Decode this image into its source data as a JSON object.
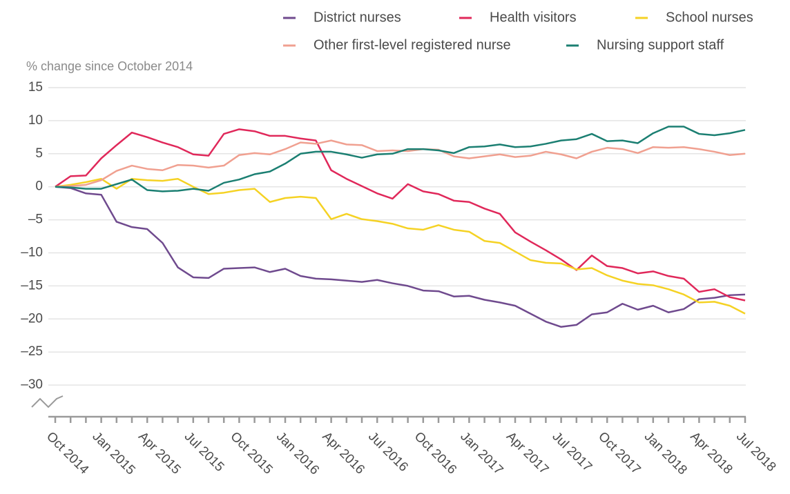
{
  "chart_data": {
    "type": "line",
    "y_axis_label": "% change since October 2014",
    "categories": [
      "Oct 2014",
      null,
      null,
      "Jan 2015",
      null,
      null,
      "Apr 2015",
      null,
      null,
      "Jul 2015",
      null,
      null,
      "Oct 2015",
      null,
      null,
      "Jan 2016",
      null,
      null,
      "Apr 2016",
      null,
      null,
      "Jul 2016",
      null,
      null,
      "Oct 2016",
      null,
      null,
      "Jan 2017",
      null,
      null,
      "Apr 2017",
      null,
      null,
      "Jul 2017",
      null,
      null,
      "Oct 2017",
      null,
      null,
      "Jan 2018",
      null,
      null,
      "Apr 2018",
      null,
      null,
      "Jul 2018"
    ],
    "ylim": [
      -35,
      15
    ],
    "yticks": [
      {
        "value": -30,
        "label": "–30"
      },
      {
        "value": -25,
        "label": "–25"
      },
      {
        "value": -20,
        "label": "–20"
      },
      {
        "value": -15,
        "label": "–15"
      },
      {
        "value": -10,
        "label": "–10"
      },
      {
        "value": -5,
        "label": "–5"
      },
      0,
      5,
      10,
      15
    ],
    "grid": true,
    "legend": "top-right",
    "series": [
      {
        "name": "District nurses",
        "color": "#6f4a8e",
        "values": [
          0,
          -0.2,
          -1,
          -1.2,
          -5.3,
          -6.1,
          -6.4,
          -8.5,
          -12.2,
          -13.7,
          -13.8,
          -12.4,
          -12.3,
          -12.2,
          -12.9,
          -12.4,
          -13.5,
          -13.9,
          -14,
          -14.2,
          -14.4,
          -14.1,
          -14.6,
          -15,
          -15.7,
          -15.8,
          -16.6,
          -16.5,
          -17.1,
          -17.5,
          -18,
          -19.2,
          -20.4,
          -21.2,
          -20.9,
          -19.3,
          -19,
          -17.7,
          -18.6,
          -18,
          -19,
          -18.5,
          -17,
          -16.8,
          -16.4,
          -16.3
        ]
      },
      {
        "name": "Health visitors",
        "color": "#e0285a",
        "values": [
          0,
          1.6,
          1.7,
          4.3,
          6.3,
          8.2,
          7.5,
          6.7,
          6,
          4.9,
          4.7,
          8,
          8.7,
          8.4,
          7.7,
          7.7,
          7.3,
          7,
          2.5,
          1.2,
          0.1,
          -1,
          -1.8,
          0.4,
          -0.7,
          -1.1,
          -2.1,
          -2.3,
          -3.3,
          -4.1,
          -6.9,
          -8.3,
          -9.6,
          -11,
          -12.6,
          -10.4,
          -12,
          -12.3,
          -13.1,
          -12.8,
          -13.5,
          -13.9,
          -15.9,
          -15.5,
          -16.7,
          -17.2
        ]
      },
      {
        "name": "School nurses",
        "color": "#f5d224",
        "values": [
          0,
          0.3,
          0.7,
          1.2,
          -0.3,
          1.2,
          1,
          0.9,
          1.2,
          0,
          -1.1,
          -0.9,
          -0.5,
          -0.3,
          -2.3,
          -1.7,
          -1.5,
          -1.7,
          -4.9,
          -4.1,
          -4.9,
          -5.2,
          -5.6,
          -6.3,
          -6.5,
          -5.8,
          -6.5,
          -6.8,
          -8.2,
          -8.5,
          -9.8,
          -11.1,
          -11.5,
          -11.6,
          -12.5,
          -12.3,
          -13.4,
          -14.2,
          -14.7,
          -14.9,
          -15.5,
          -16.3,
          -17.5,
          -17.4,
          -18,
          -19.2
        ]
      },
      {
        "name": "Other first-level registered nurse",
        "color": "#f0a090",
        "values": [
          0,
          0.1,
          0.3,
          1,
          2.4,
          3.2,
          2.7,
          2.5,
          3.3,
          3.2,
          2.9,
          3.2,
          4.8,
          5.1,
          4.9,
          5.7,
          6.7,
          6.5,
          7,
          6.4,
          6.3,
          5.4,
          5.5,
          5.4,
          5.7,
          5.6,
          4.6,
          4.3,
          4.6,
          4.9,
          4.5,
          4.7,
          5.3,
          4.9,
          4.3,
          5.3,
          5.9,
          5.7,
          5.1,
          6,
          5.9,
          6,
          5.7,
          5.3,
          4.8,
          5
        ]
      },
      {
        "name": "Nursing support staff",
        "color": "#1b7f72",
        "values": [
          0,
          -0.1,
          -0.3,
          -0.3,
          0.4,
          1.1,
          -0.5,
          -0.7,
          -0.6,
          -0.3,
          -0.6,
          0.6,
          1.1,
          1.9,
          2.3,
          3.5,
          5,
          5.3,
          5.3,
          4.9,
          4.4,
          4.9,
          5,
          5.7,
          5.7,
          5.5,
          5.1,
          6,
          6.1,
          6.4,
          6,
          6.1,
          6.5,
          7,
          7.2,
          8,
          6.9,
          7,
          6.6,
          8.1,
          9.1,
          9.1,
          8,
          7.8,
          8.1,
          8.6
        ]
      }
    ]
  }
}
